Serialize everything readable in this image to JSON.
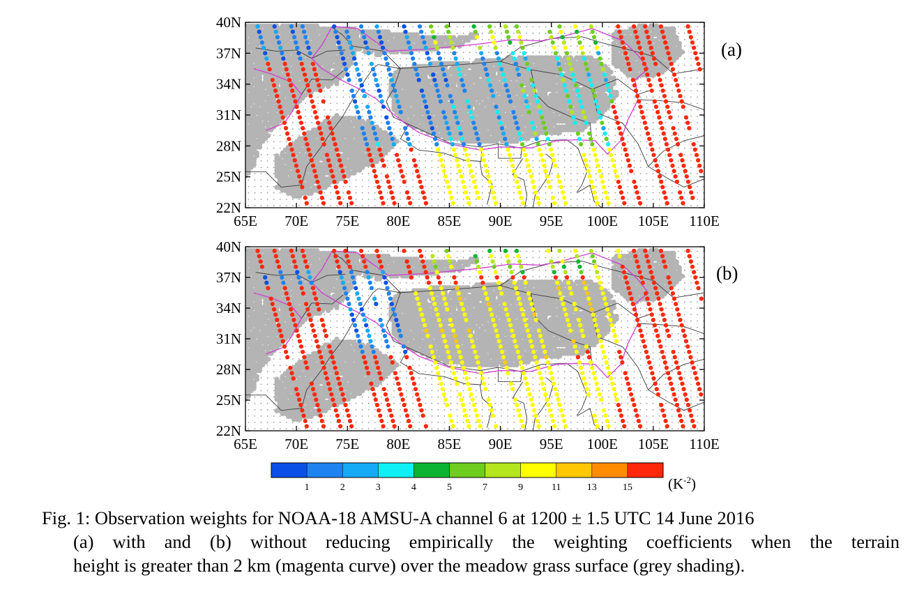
{
  "figure": {
    "panels": [
      {
        "label": "(a)",
        "description_key": "with_reduction"
      },
      {
        "label": "(b)",
        "description_key": "without_reduction"
      }
    ],
    "lat_ticks": [
      "40N",
      "37N",
      "34N",
      "31N",
      "28N",
      "25N",
      "22N"
    ],
    "lon_ticks": [
      "65E",
      "70E",
      "75E",
      "80E",
      "85E",
      "90E",
      "95E",
      "100E",
      "105E",
      "110E"
    ],
    "colorbar": {
      "colors": [
        "#0a50e6",
        "#1e82f0",
        "#14aaf5",
        "#0ff0f5",
        "#0ab432",
        "#6ecd1e",
        "#b4e61e",
        "#ffff00",
        "#ffc800",
        "#ff8c00",
        "#ff280a"
      ],
      "labels": [
        "1",
        "2",
        "3",
        "4",
        "5",
        "7",
        "9",
        "11",
        "13",
        "15"
      ],
      "unit": "(K",
      "unit_sup": "-2",
      "unit_close": ")"
    },
    "colors": {
      "terrain_contour": "#d23cd2",
      "grass_shading": "#b4b4b4",
      "border": "#3a3a3a"
    }
  },
  "caption": {
    "line1": "Fig. 1: Observation weights for NOAA-18 AMSU-A channel 6 at 1200 ± 1.5 UTC 14 June 2016",
    "line2": "(a) with and (b) without reducing empirically the weighting coefficients when the terrain",
    "line3": "height is greater than 2 km (magenta curve) over the meadow grass surface (grey shading)."
  }
}
